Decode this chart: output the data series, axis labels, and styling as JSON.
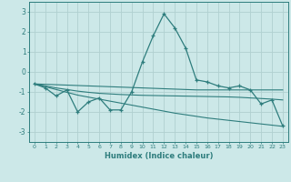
{
  "xlabel": "Humidex (Indice chaleur)",
  "xlim": [
    -0.5,
    23.5
  ],
  "ylim": [
    -3.5,
    3.5
  ],
  "yticks": [
    -3,
    -2,
    -1,
    0,
    1,
    2,
    3
  ],
  "xticks": [
    0,
    1,
    2,
    3,
    4,
    5,
    6,
    7,
    8,
    9,
    10,
    11,
    12,
    13,
    14,
    15,
    16,
    17,
    18,
    19,
    20,
    21,
    22,
    23
  ],
  "bg_color": "#cce8e8",
  "grid_color": "#b0d0d0",
  "line_color": "#2e7d7d",
  "x": [
    0,
    1,
    2,
    3,
    4,
    5,
    6,
    7,
    8,
    9,
    10,
    11,
    12,
    13,
    14,
    15,
    16,
    17,
    18,
    19,
    20,
    21,
    22,
    23
  ],
  "y_main": [
    -0.6,
    -0.8,
    -1.2,
    -0.9,
    -2.0,
    -1.5,
    -1.3,
    -1.9,
    -1.9,
    -1.0,
    0.5,
    1.8,
    2.9,
    2.2,
    1.2,
    -0.4,
    -0.5,
    -0.7,
    -0.8,
    -0.7,
    -0.9,
    -1.6,
    -1.4,
    -2.7
  ],
  "y_trend1": [
    -0.6,
    -0.62,
    -0.64,
    -0.66,
    -0.68,
    -0.7,
    -0.72,
    -0.74,
    -0.76,
    -0.78,
    -0.8,
    -0.82,
    -0.84,
    -0.86,
    -0.88,
    -0.9,
    -0.9,
    -0.9,
    -0.9,
    -0.9,
    -0.9,
    -0.9,
    -0.9,
    -0.9
  ],
  "y_trend2": [
    -0.6,
    -0.7,
    -0.8,
    -0.88,
    -0.96,
    -1.02,
    -1.07,
    -1.1,
    -1.13,
    -1.15,
    -1.17,
    -1.18,
    -1.19,
    -1.2,
    -1.21,
    -1.22,
    -1.23,
    -1.24,
    -1.25,
    -1.27,
    -1.3,
    -1.33,
    -1.36,
    -1.4
  ],
  "y_trend3": [
    -0.6,
    -0.74,
    -0.88,
    -1.02,
    -1.16,
    -1.26,
    -1.36,
    -1.46,
    -1.56,
    -1.66,
    -1.76,
    -1.86,
    -1.96,
    -2.06,
    -2.14,
    -2.22,
    -2.3,
    -2.36,
    -2.42,
    -2.48,
    -2.54,
    -2.6,
    -2.66,
    -2.72
  ]
}
